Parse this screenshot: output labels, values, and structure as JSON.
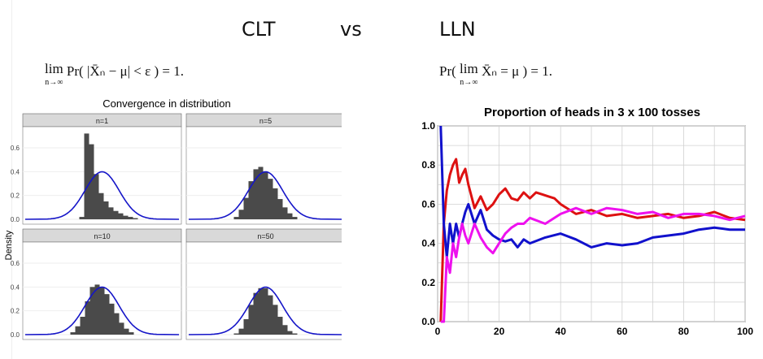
{
  "header": {
    "left": "CLT",
    "middle": "vs",
    "right": "LLN"
  },
  "formulas": {
    "clt": {
      "lim": "lim",
      "sub": "n→∞",
      "expr": "Pr( |X̄ₙ − μ| < ε ) = 1."
    },
    "lln": {
      "pre": "Pr(",
      "lim": "lim",
      "sub": "n→∞",
      "expr": "X̄ₙ = μ ) = 1."
    }
  },
  "chart_data": [
    {
      "type": "bar",
      "title": "Convergence in distribution",
      "ylabel": "Density",
      "ylim": [
        0,
        0.75
      ],
      "yticks": [
        "0.0",
        "0.2",
        "0.4",
        "0.6"
      ],
      "bar_color": "#4a4a4a",
      "curve_color": "#1515c8",
      "panels": [
        {
          "label": "n=1",
          "values": [
            0.02,
            0.72,
            0.63,
            0.38,
            0.22,
            0.15,
            0.1,
            0.07,
            0.05,
            0.03,
            0.02,
            0.01
          ],
          "start": 0
        },
        {
          "label": "n=5",
          "values": [
            0.02,
            0.08,
            0.18,
            0.32,
            0.42,
            0.44,
            0.4,
            0.34,
            0.26,
            0.17,
            0.1,
            0.05,
            0.02
          ],
          "start": 0
        },
        {
          "label": "n=10",
          "values": [
            0.02,
            0.07,
            0.15,
            0.28,
            0.4,
            0.42,
            0.4,
            0.34,
            0.26,
            0.18,
            0.1,
            0.05,
            0.02
          ],
          "start": 0
        },
        {
          "label": "n=50",
          "values": [
            0.01,
            0.05,
            0.13,
            0.25,
            0.35,
            0.39,
            0.39,
            0.33,
            0.25,
            0.15,
            0.08,
            0.03,
            0.01
          ],
          "start": 0
        }
      ]
    },
    {
      "type": "line",
      "title": "Proportion of heads in 3 x 100 tosses",
      "xlim": [
        0,
        100
      ],
      "ylim": [
        0,
        1
      ],
      "xticks": [
        "0",
        "20",
        "40",
        "60",
        "80",
        "100"
      ],
      "yticks": [
        "0.0",
        "0.2",
        "0.4",
        "0.6",
        "0.8",
        "1.0"
      ],
      "grid": true,
      "series": [
        {
          "color": "#dd1111",
          "x": [
            1,
            2,
            3,
            4,
            5,
            6,
            7,
            8,
            9,
            10,
            12,
            14,
            16,
            18,
            20,
            22,
            24,
            26,
            28,
            30,
            32,
            34,
            36,
            38,
            40,
            45,
            50,
            55,
            60,
            65,
            70,
            75,
            80,
            85,
            90,
            95,
            100
          ],
          "y": [
            0,
            0.5,
            0.67,
            0.75,
            0.8,
            0.83,
            0.71,
            0.75,
            0.78,
            0.7,
            0.58,
            0.64,
            0.57,
            0.6,
            0.65,
            0.68,
            0.63,
            0.62,
            0.66,
            0.63,
            0.66,
            0.65,
            0.64,
            0.63,
            0.6,
            0.55,
            0.57,
            0.54,
            0.55,
            0.53,
            0.54,
            0.55,
            0.53,
            0.54,
            0.56,
            0.53,
            0.52
          ]
        },
        {
          "color": "#1111cc",
          "x": [
            1,
            2,
            3,
            4,
            5,
            6,
            7,
            8,
            9,
            10,
            12,
            14,
            16,
            18,
            20,
            22,
            24,
            26,
            28,
            30,
            35,
            40,
            45,
            50,
            55,
            60,
            65,
            70,
            75,
            80,
            85,
            90,
            95,
            100
          ],
          "y": [
            1,
            0.5,
            0.33,
            0.5,
            0.4,
            0.5,
            0.43,
            0.5,
            0.56,
            0.6,
            0.5,
            0.57,
            0.47,
            0.44,
            0.42,
            0.41,
            0.42,
            0.38,
            0.42,
            0.4,
            0.43,
            0.45,
            0.42,
            0.38,
            0.4,
            0.39,
            0.4,
            0.43,
            0.44,
            0.45,
            0.47,
            0.48,
            0.47,
            0.47
          ]
        },
        {
          "color": "#ee11ee",
          "x": [
            1,
            2,
            3,
            4,
            5,
            6,
            7,
            8,
            9,
            10,
            12,
            14,
            16,
            18,
            20,
            22,
            24,
            26,
            28,
            30,
            35,
            40,
            45,
            50,
            55,
            60,
            65,
            70,
            75,
            80,
            85,
            90,
            95,
            100
          ],
          "y": [
            0,
            0,
            0.33,
            0.25,
            0.4,
            0.33,
            0.43,
            0.5,
            0.44,
            0.4,
            0.5,
            0.43,
            0.38,
            0.35,
            0.4,
            0.45,
            0.48,
            0.5,
            0.5,
            0.53,
            0.5,
            0.55,
            0.58,
            0.55,
            0.58,
            0.57,
            0.55,
            0.56,
            0.53,
            0.55,
            0.55,
            0.54,
            0.52,
            0.54
          ]
        }
      ]
    }
  ]
}
